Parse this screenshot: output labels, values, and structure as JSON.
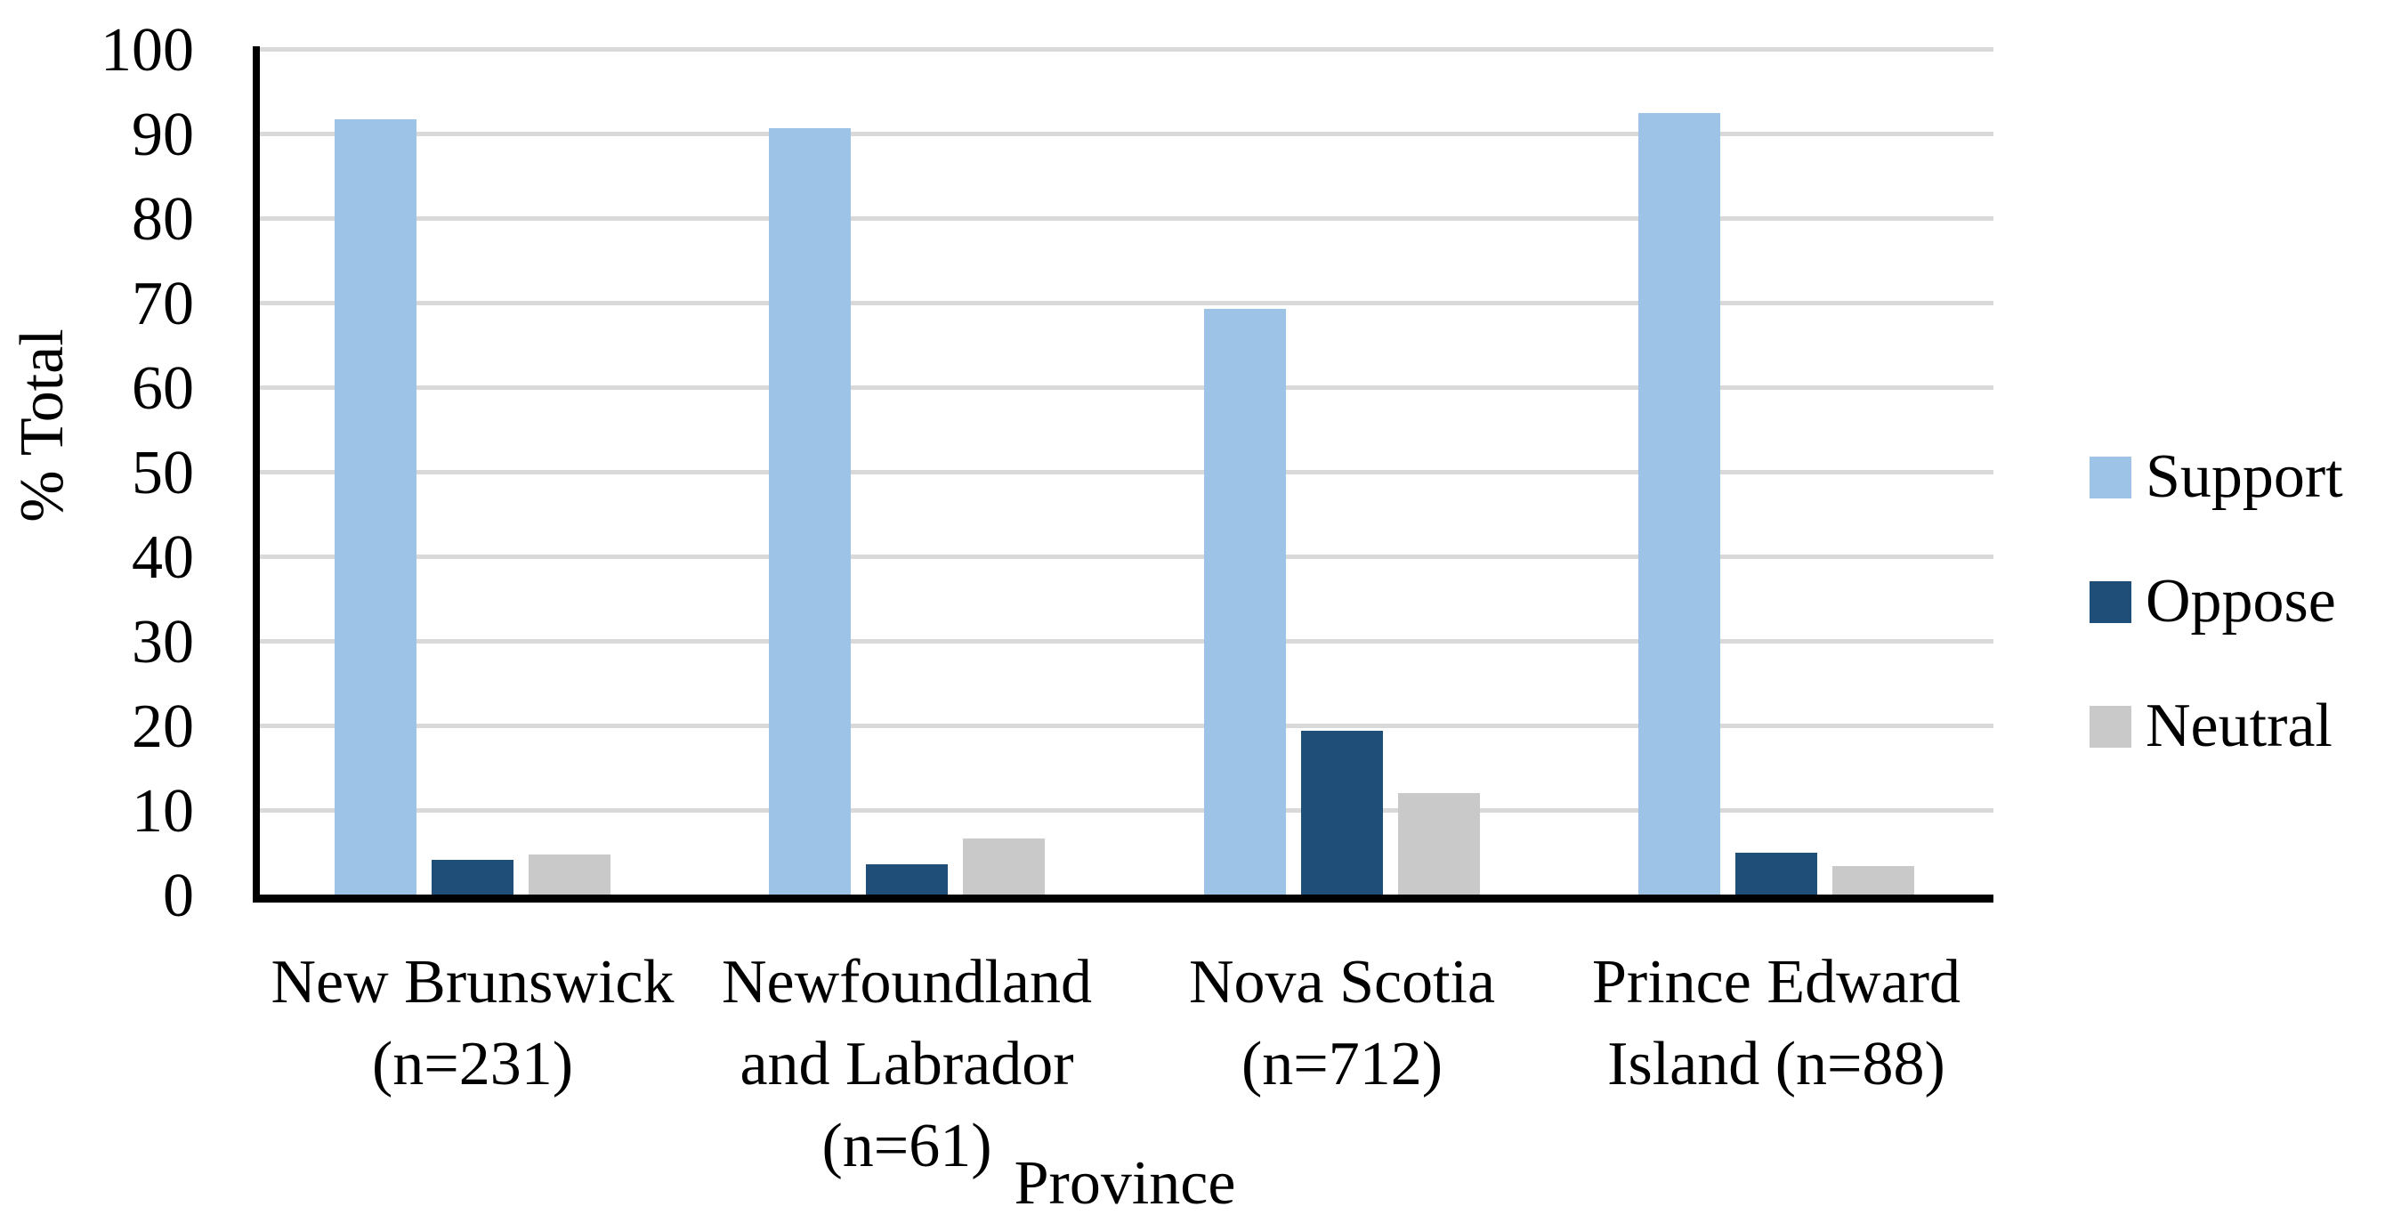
{
  "chart_data": {
    "type": "bar",
    "title": "",
    "xlabel": "Province",
    "ylabel": "% Total",
    "ylim": [
      0,
      100
    ],
    "ytick_step": 10,
    "grid": "horizontal",
    "legend_position": "right",
    "categories": [
      "New Brunswick (n=231)",
      "Newfoundland and Labrador (n=61)",
      "Nova Scotia (n=712)",
      "Prince Edward Island (n=88)"
    ],
    "category_lines": [
      [
        "New Brunswick",
        "(n=231)"
      ],
      [
        "Newfoundland",
        "and Labrador",
        "(n=61)"
      ],
      [
        "Nova Scotia",
        "(n=712)"
      ],
      [
        "Prince Edward",
        "Island (n=88)"
      ]
    ],
    "series": [
      {
        "name": "Support",
        "color": "#9DC3E6",
        "values": [
          91.7,
          90.6,
          69.3,
          92.4
        ]
      },
      {
        "name": "Oppose",
        "color": "#1F4E79",
        "values": [
          4.1,
          3.6,
          19.4,
          4.9
        ]
      },
      {
        "name": "Neutral",
        "color": "#C9C9C9",
        "values": [
          4.7,
          6.6,
          12.0,
          3.4
        ]
      }
    ],
    "colors": {
      "gridline": "#D9D9D9",
      "axis": "#000000",
      "text": "#000000",
      "background": "#FFFFFF"
    }
  }
}
